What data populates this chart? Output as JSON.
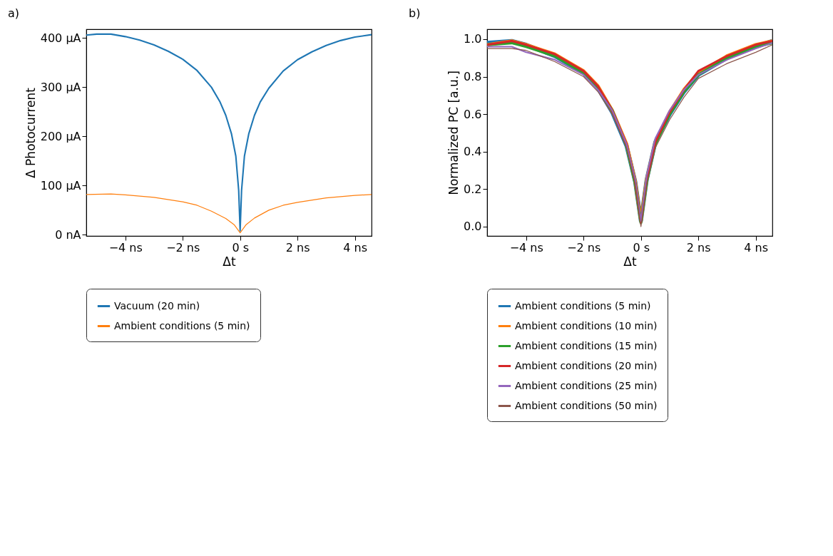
{
  "chart_data": [
    {
      "type": "line",
      "title": "a)",
      "xlabel": "Δt",
      "ylabel": "Δ Photocurrent",
      "legend": "bottom",
      "xlim": [
        -5.36,
        4.58
      ],
      "ylim": [
        -2.4,
        418
      ],
      "xticks": [
        {
          "value": -4,
          "label": "−4 ns"
        },
        {
          "value": -2,
          "label": "−2 ns"
        },
        {
          "value": 0,
          "label": "0 s"
        },
        {
          "value": 2,
          "label": "2 ns"
        },
        {
          "value": 4,
          "label": "4 ns"
        }
      ],
      "yticks": [
        {
          "value": 0,
          "label": "0 nA"
        },
        {
          "value": 100,
          "label": "100 µA"
        },
        {
          "value": 200,
          "label": "200 µA"
        },
        {
          "value": 300,
          "label": "300 µA"
        },
        {
          "value": 400,
          "label": "400 µA"
        }
      ],
      "series": [
        {
          "name": "Vacuum (20 min)",
          "color": "#1f77b4",
          "x": [
            -5.36,
            -5,
            -4.5,
            -4,
            -3.5,
            -3,
            -2.5,
            -2,
            -1.5,
            -1,
            -0.7,
            -0.5,
            -0.3,
            -0.15,
            -0.05,
            0,
            0.05,
            0.15,
            0.3,
            0.5,
            0.7,
            1,
            1.5,
            2,
            2.5,
            3,
            3.5,
            4,
            4.58
          ],
          "values": [
            406,
            408,
            408,
            403,
            396,
            386,
            373,
            357,
            334,
            300,
            270,
            243,
            205,
            160,
            90,
            8,
            90,
            160,
            205,
            243,
            270,
            298,
            333,
            356,
            372,
            385,
            395,
            402,
            407
          ]
        },
        {
          "name": "Ambient conditions (5 min)",
          "color": "#ff7f0e",
          "x": [
            -5.36,
            -4.5,
            -4,
            -3,
            -2,
            -1.5,
            -1,
            -0.5,
            -0.2,
            0,
            0.2,
            0.5,
            1,
            1.5,
            2,
            3,
            4,
            4.58
          ],
          "values": [
            82,
            83,
            81,
            76,
            67,
            60,
            48,
            33,
            20,
            4,
            20,
            34,
            50,
            60,
            66,
            75,
            80,
            82
          ]
        }
      ]
    },
    {
      "type": "line",
      "title": "b)",
      "xlabel": "Δt",
      "ylabel": "Normalized PC [a.u.]",
      "legend": "bottom",
      "xlim": [
        -5.36,
        4.58
      ],
      "ylim": [
        -0.05,
        1.053
      ],
      "xticks": [
        {
          "value": -4,
          "label": "−4 ns"
        },
        {
          "value": -2,
          "label": "−2 ns"
        },
        {
          "value": 0,
          "label": "0 s"
        },
        {
          "value": 2,
          "label": "2 ns"
        },
        {
          "value": 4,
          "label": "4 ns"
        }
      ],
      "yticks": [
        {
          "value": 0,
          "label": "0.0"
        },
        {
          "value": 0.2,
          "label": "0.2"
        },
        {
          "value": 0.4,
          "label": "0.4"
        },
        {
          "value": 0.6,
          "label": "0.6"
        },
        {
          "value": 0.8,
          "label": "0.8"
        },
        {
          "value": 1,
          "label": "1.0"
        }
      ],
      "series": [
        {
          "name": "Ambient conditions (5 min)",
          "color": "#1f77b4",
          "x": [
            -5.36,
            -4.5,
            -4,
            -3,
            -2,
            -1.5,
            -1,
            -0.5,
            -0.2,
            0,
            0.2,
            0.5,
            1,
            1.5,
            2,
            3,
            4,
            4.58
          ],
          "values": [
            0.98,
            0.99,
            0.97,
            0.91,
            0.82,
            0.74,
            0.61,
            0.43,
            0.24,
            0.03,
            0.25,
            0.45,
            0.6,
            0.72,
            0.81,
            0.9,
            0.96,
            0.99
          ]
        },
        {
          "name": "Ambient conditions (10 min)",
          "color": "#ff7f0e",
          "x": [
            -5.36,
            -4.5,
            -4,
            -3,
            -2,
            -1.5,
            -1,
            -0.5,
            -0.2,
            0,
            0.2,
            0.5,
            1,
            1.5,
            2,
            3,
            4,
            4.58
          ],
          "values": [
            0.97,
            0.99,
            0.97,
            0.92,
            0.83,
            0.75,
            0.62,
            0.44,
            0.24,
            0.03,
            0.25,
            0.45,
            0.61,
            0.73,
            0.82,
            0.91,
            0.97,
            0.99
          ]
        },
        {
          "name": "Ambient conditions (15 min)",
          "color": "#2ca02c",
          "x": [
            -5.36,
            -4.5,
            -4,
            -3,
            -2,
            -1.5,
            -1,
            -0.5,
            -0.2,
            0,
            0.2,
            0.5,
            1,
            1.5,
            2,
            3,
            4,
            4.58
          ],
          "values": [
            0.97,
            0.98,
            0.96,
            0.91,
            0.82,
            0.74,
            0.62,
            0.43,
            0.23,
            0.02,
            0.24,
            0.44,
            0.6,
            0.72,
            0.81,
            0.9,
            0.96,
            0.98
          ]
        },
        {
          "name": "Ambient conditions (20 min)",
          "color": "#d62728",
          "x": [
            -5.36,
            -4.5,
            -4,
            -3,
            -2,
            -1.5,
            -1,
            -0.5,
            -0.2,
            0,
            0.2,
            0.5,
            1,
            1.5,
            2,
            3,
            4,
            4.58
          ],
          "values": [
            0.97,
            0.99,
            0.97,
            0.92,
            0.83,
            0.75,
            0.62,
            0.44,
            0.24,
            0.02,
            0.25,
            0.45,
            0.61,
            0.73,
            0.83,
            0.91,
            0.97,
            0.99
          ]
        },
        {
          "name": "Ambient conditions (25 min)",
          "color": "#9467bd",
          "x": [
            -5.36,
            -4.5,
            -4,
            -3,
            -2,
            -1.5,
            -1,
            -0.5,
            -0.2,
            0,
            0.2,
            0.5,
            1,
            1.5,
            2,
            3,
            4,
            4.58
          ],
          "values": [
            0.96,
            0.96,
            0.93,
            0.89,
            0.81,
            0.73,
            0.62,
            0.44,
            0.25,
            0.03,
            0.27,
            0.47,
            0.62,
            0.73,
            0.81,
            0.89,
            0.95,
            0.98
          ]
        },
        {
          "name": "Ambient conditions (50 min)",
          "color": "#8c564b",
          "x": [
            -5.36,
            -4.5,
            -4,
            -3,
            -2,
            -1.5,
            -1,
            -0.5,
            -0.2,
            0,
            0.2,
            0.5,
            1,
            1.5,
            2,
            3,
            4,
            4.58
          ],
          "values": [
            0.95,
            0.95,
            0.94,
            0.88,
            0.8,
            0.72,
            0.6,
            0.42,
            0.23,
            0.0,
            0.23,
            0.42,
            0.57,
            0.69,
            0.79,
            0.87,
            0.93,
            0.97
          ]
        }
      ]
    }
  ]
}
